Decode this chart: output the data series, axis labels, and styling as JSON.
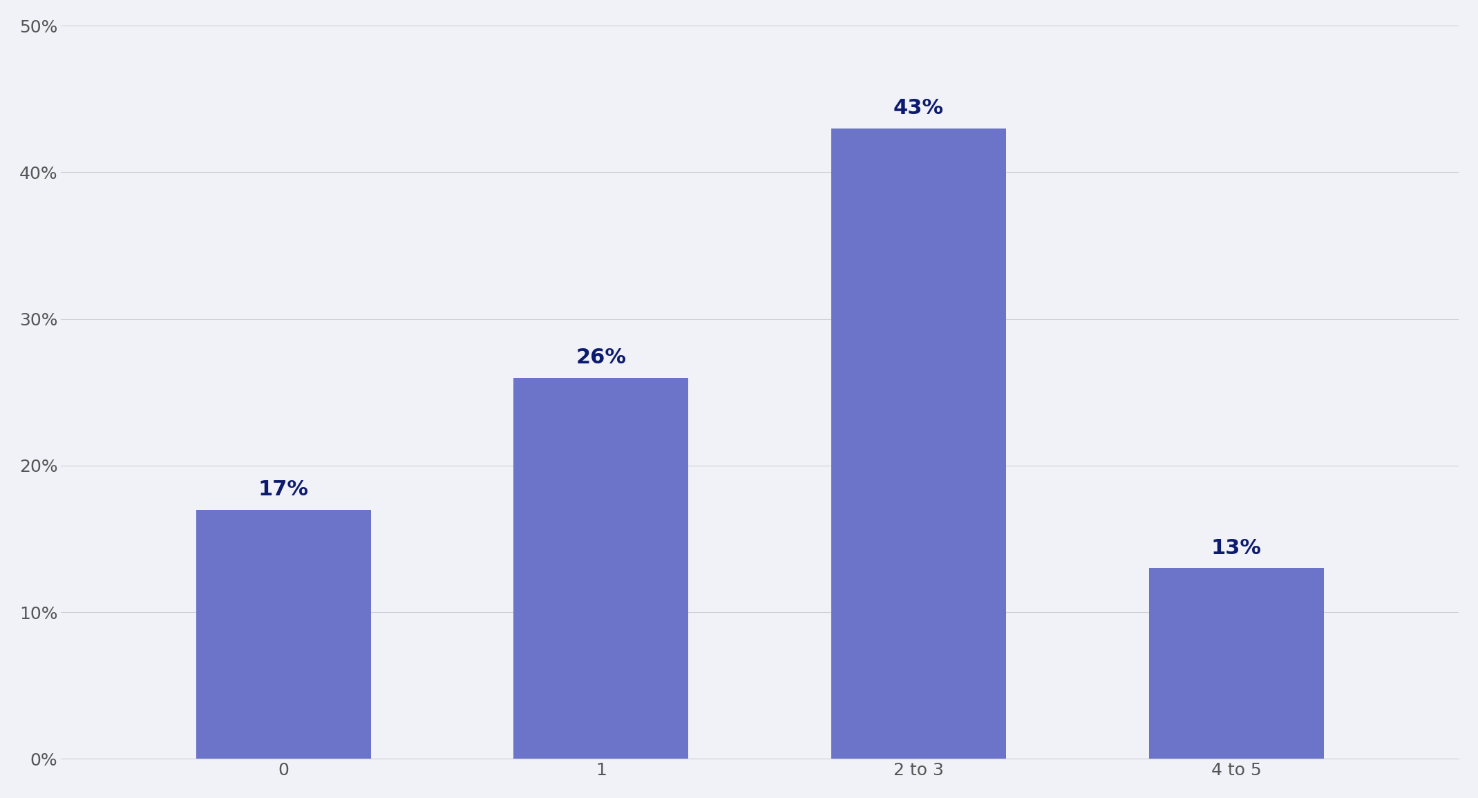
{
  "categories": [
    "0",
    "1",
    "2 to 3",
    "4 to 5"
  ],
  "values": [
    17,
    26,
    43,
    13
  ],
  "bar_color": "#6B74C8",
  "label_color": "#0D1B6E",
  "background_color": "#F0F2F8",
  "ylim": [
    0,
    50
  ],
  "yticks": [
    0,
    10,
    20,
    30,
    40,
    50
  ],
  "label_fontsize": 22,
  "tick_fontsize": 18,
  "label_fontweight": "bold",
  "bar_width": 0.55,
  "grid_color": "#D0D0D8",
  "spine_color": "#D0D0D8",
  "tick_label_color": "#555555"
}
